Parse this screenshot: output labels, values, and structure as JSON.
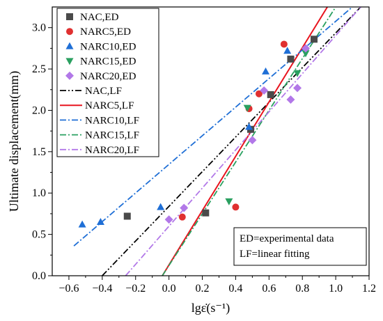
{
  "chart_data": {
    "type": "scatter",
    "xlabel": "lgε̇(s⁻¹)",
    "ylabel": "Ultimate displacement(mm)",
    "xlim": [
      -0.7,
      1.2
    ],
    "ylim": [
      0.0,
      3.25
    ],
    "x_ticks": [
      -0.6,
      -0.4,
      -0.2,
      0.0,
      0.2,
      0.4,
      0.6,
      0.8,
      1.0,
      1.2
    ],
    "x_tick_labels": [
      "−0.6",
      "−0.4",
      "−0.2",
      "0.0",
      "0.2",
      "0.4",
      "0.6",
      "0.8",
      "1.0",
      "1.2"
    ],
    "y_ticks": [
      0.0,
      0.5,
      1.0,
      1.5,
      2.0,
      2.5,
      3.0
    ],
    "y_tick_labels": [
      "0.0",
      "0.5",
      "1.0",
      "1.5",
      "2.0",
      "2.5",
      "3.0"
    ],
    "grid": false,
    "legend_position": "top-left",
    "scatter_series": [
      {
        "name": "NAC,ED",
        "marker": "square",
        "color": "#4a4a4a",
        "points": [
          [
            -0.25,
            0.72
          ],
          [
            0.22,
            0.76
          ],
          [
            0.49,
            1.77
          ],
          [
            0.61,
            2.19
          ],
          [
            0.73,
            2.62
          ],
          [
            0.87,
            2.86
          ]
        ]
      },
      {
        "name": "NARC5,ED",
        "marker": "circle",
        "color": "#e03030",
        "points": [
          [
            0.08,
            0.71
          ],
          [
            0.4,
            0.83
          ],
          [
            0.48,
            2.02
          ],
          [
            0.54,
            2.2
          ],
          [
            0.69,
            2.8
          ]
        ]
      },
      {
        "name": "NARC10,ED",
        "marker": "triangle-up",
        "color": "#1f6fd6",
        "points": [
          [
            -0.52,
            0.62
          ],
          [
            -0.41,
            0.65
          ],
          [
            -0.05,
            0.83
          ],
          [
            0.48,
            1.8
          ],
          [
            0.58,
            2.47
          ],
          [
            0.71,
            2.72
          ]
        ]
      },
      {
        "name": "NARC15,ED",
        "marker": "triangle-down",
        "color": "#2aa060",
        "points": [
          [
            0.36,
            0.9
          ],
          [
            0.47,
            2.03
          ],
          [
            0.77,
            2.45
          ],
          [
            0.82,
            2.69
          ]
        ]
      },
      {
        "name": "NARC20,ED",
        "marker": "diamond",
        "color": "#b278e8",
        "points": [
          [
            -0.0,
            0.68
          ],
          [
            0.09,
            0.82
          ],
          [
            0.5,
            1.64
          ],
          [
            0.57,
            2.24
          ],
          [
            0.73,
            2.13
          ],
          [
            0.77,
            2.27
          ],
          [
            0.82,
            2.75
          ]
        ]
      }
    ],
    "line_series": [
      {
        "name": "NAC,LF",
        "dash": "dashdotdot",
        "color": "#000000",
        "x": [
          -0.4,
          1.15
        ],
        "y": [
          0.0,
          3.25
        ]
      },
      {
        "name": "NARC5,LF",
        "dash": "solid",
        "color": "#e8141e",
        "x": [
          -0.04,
          0.95
        ],
        "y": [
          0.0,
          3.25
        ]
      },
      {
        "name": "NARC10,LF",
        "dash": "dashdot",
        "color": "#1f6fd6",
        "x": [
          -0.57,
          1.1
        ],
        "y": [
          0.36,
          3.25
        ]
      },
      {
        "name": "NARC15,LF",
        "dash": "dashdot",
        "color": "#2aa060",
        "x": [
          -0.04,
          1.0
        ],
        "y": [
          0.0,
          3.25
        ]
      },
      {
        "name": "NARC20,LF",
        "dash": "dashdot",
        "color": "#b278e8",
        "x": [
          -0.26,
          1.15
        ],
        "y": [
          0.0,
          3.25
        ]
      }
    ],
    "annotations": [
      "ED=experimental data",
      "LF=linear fitting"
    ]
  }
}
